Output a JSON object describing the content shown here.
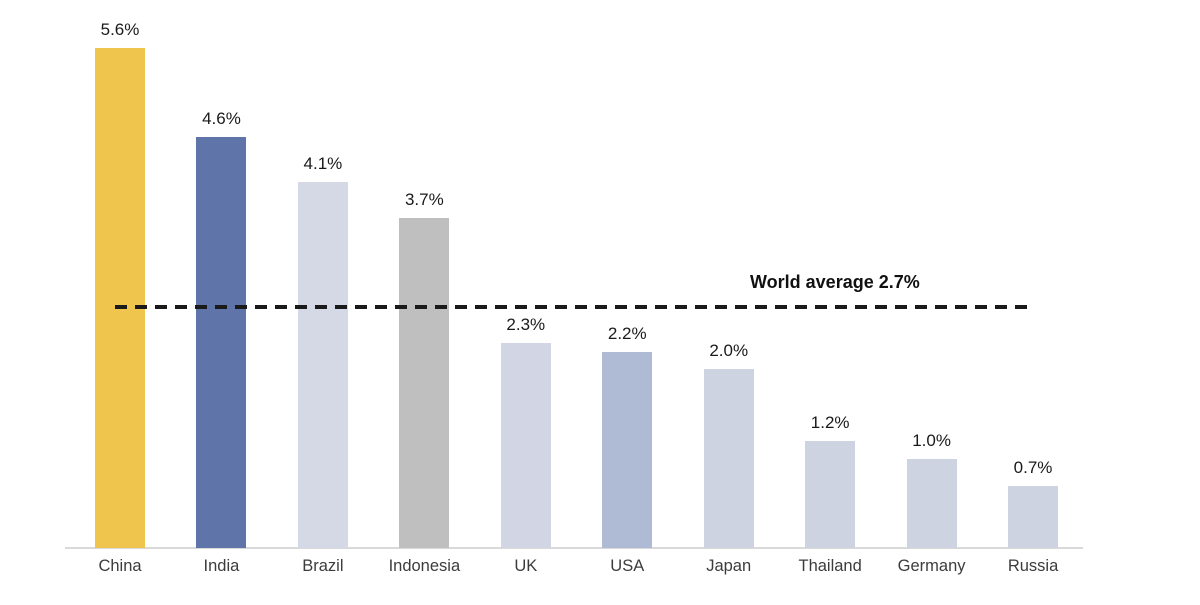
{
  "chart_data": {
    "type": "bar",
    "title": "",
    "xlabel": "",
    "ylabel": "",
    "categories": [
      "China",
      "India",
      "Brazil",
      "Indonesia",
      "UK",
      "USA",
      "Japan",
      "Thailand",
      "Germany",
      "Russia"
    ],
    "values": [
      5.6,
      4.6,
      4.1,
      3.7,
      2.3,
      2.2,
      2.0,
      1.2,
      1.0,
      0.7
    ],
    "value_labels": [
      "5.6%",
      "4.6%",
      "4.1%",
      "3.7%",
      "2.3%",
      "2.2%",
      "2.0%",
      "1.2%",
      "1.0%",
      "0.7%"
    ],
    "bar_colors": [
      "#F0C54E",
      "#5F74A8",
      "#D5D9E6",
      "#BFBFBF",
      "#D2D6E4",
      "#AFBAD4",
      "#CED3E1",
      "#CED3E1",
      "#CED3E1",
      "#CED3E1"
    ],
    "reference_line": {
      "value": 2.7,
      "label": "World average 2.7%",
      "color": "#1a1a1a",
      "style": "dashed"
    },
    "ylim": [
      0,
      5.6
    ],
    "grid": false,
    "legend": false,
    "axis_line_color": "#d9d9d9",
    "label_color": "#1a1a1a",
    "category_label_color": "#3c3c3c"
  }
}
